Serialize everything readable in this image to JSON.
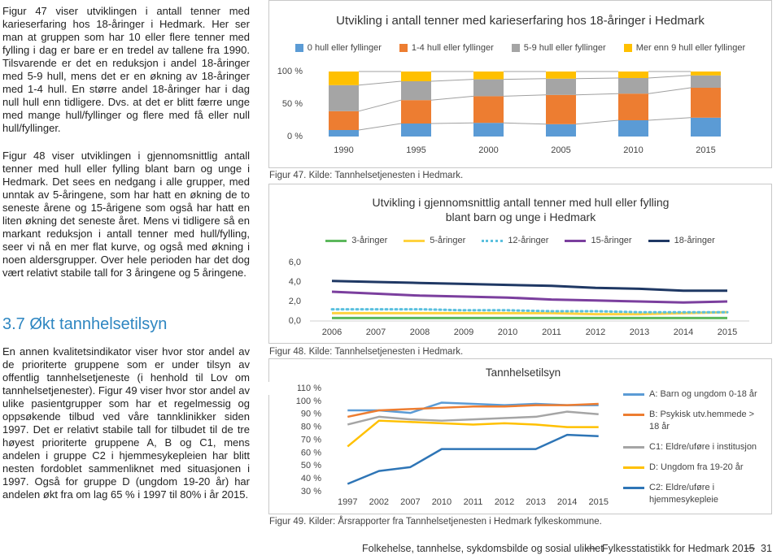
{
  "left_column": {
    "intro": [
      "Figur 47 viser utviklingen i antall tenner med karieserfaring hos 18-åringer i Hedmark. Her ser man at gruppen som har 10 eller flere tenner med fylling i dag er bare er en tredel av tallene fra 1990. Tilsvarende er det en reduksjon i andel 18-åringer med 5-9 hull, mens det er en økning av 18-åringer med 1-4 hull. En større andel 18-åringer har i dag null hull enn tidligere. Dvs. at det er blitt færre unge med mange hull/fyllinger og flere med få eller null hull/fyllinger.",
      "Figur 48 viser utviklingen i gjennomsnittlig antall tenner med hull eller fylling blant barn og unge i Hedmark. Det sees en nedgang i alle grupper, med unntak av 5-åringene, som har hatt en økning de to seneste årene og 15-årigene som også har hatt en liten økning det seneste året. Mens vi tidligere så en markant reduksjon i antall tenner med hull/fylling, seer vi nå en mer flat kurve, og også med økning i noen aldersgrupper. Over hele perioden har det dog vært relativt stabile tall for 3 åringene og 5 åringene."
    ],
    "heading": "3.7 Økt tannhelsetilsyn",
    "body": [
      "En annen kvalitetsindikator viser hvor stor andel av de prioriterte gruppene som er under tilsyn av offentlig tannhelsetjeneste (i henhold til Lov om tannhelsetjenester). Figur 49 viser hvor stor andel av ulike pasientgrupper som har et regelmessig og oppsøkende tilbud ved våre tannklinikker siden 1997. Det er relativt stabile tall for tilbudet til de tre høyest prioriterte gruppene A, B og C1, mens andelen i gruppe C2 i hjemmesykepleien har blitt nesten fordoblet sammenliknet med situasjonen i 1997. Også for gruppe D (ungdom 19-20 år) har andelen økt fra om lag 65 % i 1997 til 80% i år 2015."
    ]
  },
  "chart_data": [
    {
      "type": "bar",
      "stacked": true,
      "series_lines": true,
      "title": "Utvikling i antall tenner med karieserfaring hos 18-åringer i Hedmark",
      "categories": [
        "1990",
        "1995",
        "2000",
        "2005",
        "2010",
        "2015"
      ],
      "series": [
        {
          "name": "0 hull eller fyllinger",
          "color": "#5b9bd5",
          "values": [
            10,
            20,
            21,
            19,
            25,
            29
          ]
        },
        {
          "name": "1-4 hull eller fyllinger",
          "color": "#ed7d31",
          "values": [
            29,
            36,
            41,
            45,
            41,
            46
          ]
        },
        {
          "name": "5-9 hull eller fyllinger",
          "color": "#a5a5a5",
          "values": [
            40,
            29,
            26,
            25,
            24,
            19
          ]
        },
        {
          "name": "Mer enn 9 hull eller fyllinger",
          "color": "#ffc000",
          "values": [
            21,
            15,
            12,
            11,
            10,
            6
          ]
        }
      ],
      "ylim": [
        0,
        100
      ],
      "yticks": [
        {
          "value": 0,
          "label": "0 %"
        },
        {
          "value": 50,
          "label": "50 %"
        },
        {
          "value": 100,
          "label": "100 %"
        }
      ],
      "legend": "top",
      "caption": "Figur 47. Kilde: Tannhelsetjenesten i Hedmark."
    },
    {
      "type": "line",
      "title": "Utvikling i gjennomsnittlig antall tenner med hull eller fylling blant barn og unge i Hedmark",
      "categories": [
        "2006",
        "2007",
        "2008",
        "2009",
        "2010",
        "2011",
        "2012",
        "2013",
        "2014",
        "2015"
      ],
      "series": [
        {
          "name": "3-åringer",
          "color": "#5cb85c",
          "values": [
            0.3,
            0.3,
            0.3,
            0.3,
            0.3,
            0.3,
            0.3,
            0.3,
            0.3,
            0.3
          ]
        },
        {
          "name": "5-åringer",
          "color": "#ffd23f",
          "values": [
            0.8,
            0.8,
            0.8,
            0.8,
            0.8,
            0.8,
            0.7,
            0.7,
            0.8,
            0.9
          ]
        },
        {
          "name": "12-åringer",
          "color": "#5bc0de",
          "dashed": true,
          "values": [
            1.2,
            1.2,
            1.2,
            1.1,
            1.1,
            1.0,
            1.0,
            0.9,
            0.9,
            0.9
          ]
        },
        {
          "name": "15-åringer",
          "color": "#7b3f9e",
          "values": [
            3.0,
            2.8,
            2.6,
            2.5,
            2.4,
            2.2,
            2.1,
            2.0,
            1.9,
            2.0
          ]
        },
        {
          "name": "18-åringer",
          "color": "#1f3864",
          "values": [
            4.1,
            4.0,
            3.9,
            3.8,
            3.7,
            3.6,
            3.4,
            3.3,
            3.1,
            3.1
          ]
        }
      ],
      "ylim": [
        0,
        6
      ],
      "yticks": [
        {
          "value": 0,
          "label": "0,0"
        },
        {
          "value": 2,
          "label": "2,0"
        },
        {
          "value": 4,
          "label": "4,0"
        },
        {
          "value": 6,
          "label": "6,0"
        }
      ],
      "legend": "top",
      "caption": "Figur 48. Kilde: Tannhelsetjenesten i Hedmark."
    },
    {
      "type": "line",
      "title": "Tannhelsetilsyn",
      "categories": [
        "1997",
        "2002",
        "2007",
        "2010",
        "2011",
        "2012",
        "2013",
        "2014",
        "2015"
      ],
      "series": [
        {
          "name": "A: Barn og ungdom 0-18 år",
          "color": "#5b9bd5",
          "values": [
            93,
            93,
            91,
            99,
            98,
            97,
            98,
            97,
            97
          ]
        },
        {
          "name": "B: Psykisk utv.hemmede > 18 år",
          "color": "#ed7d31",
          "values": [
            88,
            93,
            94,
            95,
            96,
            96,
            97,
            97,
            98
          ]
        },
        {
          "name": "C1: Eldre/uføre i institusjon",
          "color": "#a5a5a5",
          "values": [
            82,
            88,
            86,
            85,
            86,
            87,
            88,
            92,
            90
          ]
        },
        {
          "name": "D: Ungdom fra 19-20 år",
          "color": "#ffc000",
          "values": [
            65,
            85,
            84,
            83,
            82,
            83,
            82,
            80,
            80
          ]
        },
        {
          "name": "C2: Eldre/uføre i hjemmesykepleie",
          "color": "#2e75b6",
          "values": [
            36,
            46,
            49,
            63,
            63,
            63,
            63,
            74,
            73
          ]
        }
      ],
      "ylim": [
        30,
        110
      ],
      "yticks": [
        {
          "value": 30,
          "label": "30 %"
        },
        {
          "value": 40,
          "label": "40 %"
        },
        {
          "value": 50,
          "label": "50 %"
        },
        {
          "value": 60,
          "label": "60 %"
        },
        {
          "value": 70,
          "label": "70 %"
        },
        {
          "value": 80,
          "label": "80 %"
        },
        {
          "value": 90,
          "label": "90 %"
        },
        {
          "value": 100,
          "label": "100 %"
        },
        {
          "value": 110,
          "label": "110 %"
        }
      ],
      "legend": "right",
      "caption": "Figur 49. Kilder: Årsrapporter fra Tannhelsetjenesten i Hedmark fylkeskommune."
    }
  ],
  "footer": {
    "left": "Folkehelse, tannhelse, sykdomsbilde og sosial ulikhet",
    "right": "Fylkesstatistikk for Hedmark 2015",
    "page": "31"
  }
}
